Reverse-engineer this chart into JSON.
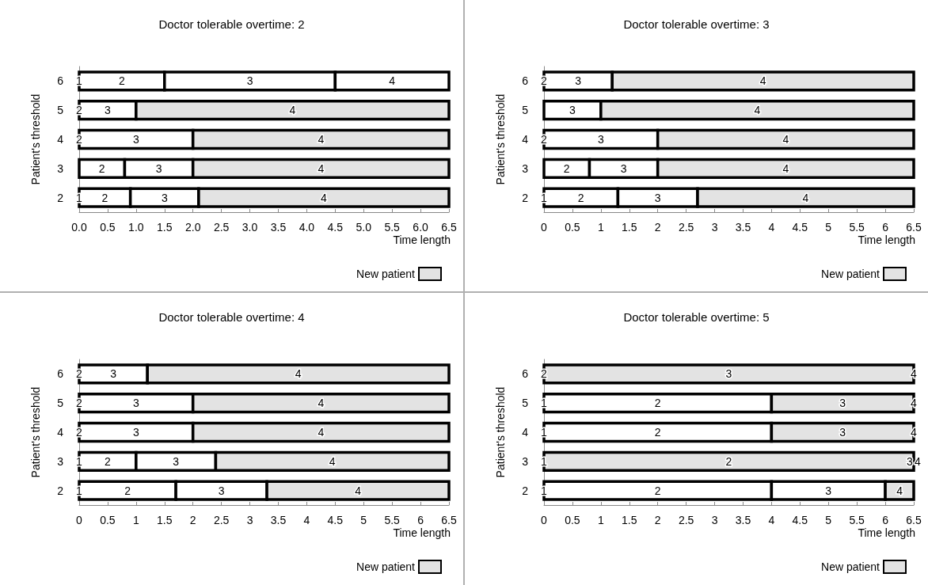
{
  "chart_data": [
    {
      "type": "bar",
      "orientation": "horizontal",
      "title": "Doctor tolerable overtime: 2",
      "xlabel": "Time length",
      "ylabel": "Patient's threshold",
      "categories": [
        "6",
        "5",
        "4",
        "3",
        "2"
      ],
      "xlim": [
        0,
        6.5
      ],
      "xticks": [
        {
          "value": 0,
          "label": "0.0"
        },
        {
          "value": 0.5,
          "label": "0.5"
        },
        {
          "value": 1,
          "label": "1.0"
        },
        {
          "value": 1.5,
          "label": "1.5"
        },
        {
          "value": 2,
          "label": "2.0"
        },
        {
          "value": 2.5,
          "label": "2.5"
        },
        {
          "value": 3,
          "label": "3.0"
        },
        {
          "value": 3.5,
          "label": "3.5"
        },
        {
          "value": 4,
          "label": "4.0"
        },
        {
          "value": 4.5,
          "label": "4.5"
        },
        {
          "value": 5,
          "label": "5.0"
        },
        {
          "value": 5.5,
          "label": "5.5"
        },
        {
          "value": 6,
          "label": "6.0"
        },
        {
          "value": 6.5,
          "label": "6.5"
        }
      ],
      "grid": false,
      "legend": "bottom right",
      "series": [
        {
          "color": "#ffffff",
          "values": [
            1.5,
            null,
            null,
            0.8,
            0.9
          ],
          "base": [
            0,
            null,
            null,
            0,
            0
          ]
        },
        {
          "color": "#ffffff",
          "values": [
            3,
            1,
            2,
            1.2,
            1.2
          ],
          "base": [
            1.5,
            0,
            0,
            0.8,
            0.9
          ]
        },
        {
          "color": "#ffffff",
          "values": [
            2,
            null,
            null,
            null,
            null
          ],
          "base": [
            4.5,
            null,
            null,
            null,
            null
          ]
        },
        {
          "name": "New patient",
          "color": "#e3e3e3",
          "values": [
            null,
            5.5,
            4.5,
            4.5,
            4.4
          ],
          "base": [
            null,
            1,
            2,
            2,
            2.1
          ]
        }
      ],
      "annotations": [
        {
          "text": "1",
          "x": 0,
          "y": "6"
        },
        {
          "text": "2",
          "x": 0.75,
          "y": "6"
        },
        {
          "text": "3",
          "x": 3,
          "y": "6"
        },
        {
          "text": "4",
          "x": 5.5,
          "y": "6"
        },
        {
          "text": "2",
          "x": 0,
          "y": "5"
        },
        {
          "text": "3",
          "x": 0.5,
          "y": "5"
        },
        {
          "text": "4",
          "x": 3.75,
          "y": "5"
        },
        {
          "text": "2",
          "x": 0,
          "y": "4"
        },
        {
          "text": "3",
          "x": 1,
          "y": "4"
        },
        {
          "text": "4",
          "x": 4.25,
          "y": "4"
        },
        {
          "text": "2",
          "x": 0.4,
          "y": "3"
        },
        {
          "text": "3",
          "x": 1.4,
          "y": "3"
        },
        {
          "text": "4",
          "x": 4.25,
          "y": "3"
        },
        {
          "text": "1",
          "x": 0,
          "y": "2"
        },
        {
          "text": "2",
          "x": 0.45,
          "y": "2"
        },
        {
          "text": "3",
          "x": 1.5,
          "y": "2"
        },
        {
          "text": "4",
          "x": 4.3,
          "y": "2"
        }
      ]
    },
    {
      "type": "bar",
      "orientation": "horizontal",
      "title": "Doctor tolerable overtime: 3",
      "xlabel": "Time length",
      "ylabel": "Patient's threshold",
      "categories": [
        "6",
        "5",
        "4",
        "3",
        "2"
      ],
      "xlim": [
        0,
        6.5
      ],
      "xticks": [
        0,
        0.5,
        1,
        1.5,
        2,
        2.5,
        3,
        3.5,
        4,
        4.5,
        5,
        5.5,
        6,
        6.5
      ],
      "grid": false,
      "legend": "bottom right",
      "series": [
        {
          "color": "#ffffff",
          "values": [
            null,
            null,
            null,
            0.8,
            1.3
          ],
          "base": [
            null,
            null,
            null,
            0,
            0
          ]
        },
        {
          "color": "#ffffff",
          "values": [
            1.2,
            1,
            2,
            1.2,
            1.4
          ],
          "base": [
            0,
            0,
            0,
            0.8,
            1.3
          ]
        },
        {
          "name": "New patient",
          "color": "#e3e3e3",
          "values": [
            5.3,
            5.5,
            4.5,
            4.5,
            3.8
          ],
          "base": [
            1.2,
            1,
            2,
            2,
            2.7
          ]
        }
      ],
      "annotations": [
        {
          "text": "2",
          "x": 0,
          "y": "6"
        },
        {
          "text": "3",
          "x": 0.6,
          "y": "6"
        },
        {
          "text": "4",
          "x": 3.85,
          "y": "6"
        },
        {
          "text": "3",
          "x": 0.5,
          "y": "5"
        },
        {
          "text": "4",
          "x": 3.75,
          "y": "5"
        },
        {
          "text": "2",
          "x": 0,
          "y": "4"
        },
        {
          "text": "3",
          "x": 1,
          "y": "4"
        },
        {
          "text": "4",
          "x": 4.25,
          "y": "4"
        },
        {
          "text": "2",
          "x": 0.4,
          "y": "3"
        },
        {
          "text": "3",
          "x": 1.4,
          "y": "3"
        },
        {
          "text": "4",
          "x": 4.25,
          "y": "3"
        },
        {
          "text": "1",
          "x": 0,
          "y": "2"
        },
        {
          "text": "2",
          "x": 0.65,
          "y": "2"
        },
        {
          "text": "3",
          "x": 2,
          "y": "2"
        },
        {
          "text": "4",
          "x": 4.6,
          "y": "2"
        }
      ]
    },
    {
      "type": "bar",
      "orientation": "horizontal",
      "title": "Doctor tolerable overtime: 4",
      "xlabel": "Time length",
      "ylabel": "Patient's threshold",
      "categories": [
        "6",
        "5",
        "4",
        "3",
        "2"
      ],
      "xlim": [
        0,
        6.5
      ],
      "xticks": [
        0,
        0.5,
        1,
        1.5,
        2,
        2.5,
        3,
        3.5,
        4,
        4.5,
        5,
        5.5,
        6,
        6.5
      ],
      "grid": false,
      "legend": "bottom right",
      "series": [
        {
          "color": "#ffffff",
          "values": [
            null,
            null,
            null,
            1,
            1.7
          ],
          "base": [
            null,
            null,
            null,
            0,
            0
          ]
        },
        {
          "color": "#ffffff",
          "values": [
            1.2,
            2,
            2,
            1.4,
            1.6
          ],
          "base": [
            0,
            0,
            0,
            1,
            1.7
          ]
        },
        {
          "name": "New patient",
          "color": "#e3e3e3",
          "values": [
            5.3,
            4.5,
            4.5,
            4.1,
            3.2
          ],
          "base": [
            1.2,
            2,
            2,
            2.4,
            3.3
          ]
        }
      ],
      "annotations": [
        {
          "text": "2",
          "x": 0,
          "y": "6"
        },
        {
          "text": "3",
          "x": 0.6,
          "y": "6"
        },
        {
          "text": "4",
          "x": 3.85,
          "y": "6"
        },
        {
          "text": "2",
          "x": 0,
          "y": "5"
        },
        {
          "text": "3",
          "x": 1,
          "y": "5"
        },
        {
          "text": "4",
          "x": 4.25,
          "y": "5"
        },
        {
          "text": "2",
          "x": 0,
          "y": "4"
        },
        {
          "text": "3",
          "x": 1,
          "y": "4"
        },
        {
          "text": "4",
          "x": 4.25,
          "y": "4"
        },
        {
          "text": "1",
          "x": 0,
          "y": "3"
        },
        {
          "text": "2",
          "x": 0.5,
          "y": "3"
        },
        {
          "text": "3",
          "x": 1.7,
          "y": "3"
        },
        {
          "text": "4",
          "x": 4.45,
          "y": "3"
        },
        {
          "text": "1",
          "x": 0,
          "y": "2"
        },
        {
          "text": "2",
          "x": 0.85,
          "y": "2"
        },
        {
          "text": "3",
          "x": 2.5,
          "y": "2"
        },
        {
          "text": "4",
          "x": 4.9,
          "y": "2"
        }
      ]
    },
    {
      "type": "bar",
      "orientation": "horizontal",
      "title": "Doctor tolerable overtime: 5",
      "xlabel": "Time length",
      "ylabel": "Patient's threshold",
      "categories": [
        "6",
        "5",
        "4",
        "3",
        "2"
      ],
      "xlim": [
        0,
        6.5
      ],
      "xticks": [
        0,
        0.5,
        1,
        1.5,
        2,
        2.5,
        3,
        3.5,
        4,
        4.5,
        5,
        5.5,
        6,
        6.5
      ],
      "grid": false,
      "legend": "bottom right",
      "series": [
        {
          "color": "#ffffff",
          "values": [
            null,
            4,
            4,
            null,
            4
          ],
          "base": [
            null,
            0,
            0,
            null,
            0
          ]
        },
        {
          "color": "#ffffff",
          "values": [
            null,
            null,
            null,
            null,
            2
          ],
          "base": [
            null,
            null,
            null,
            null,
            4
          ]
        },
        {
          "name": "New patient",
          "color": "#e3e3e3",
          "values": [
            6.5,
            2.5,
            2.5,
            6.5,
            0.5
          ],
          "base": [
            0,
            4,
            4,
            0,
            6
          ]
        }
      ],
      "annotations": [
        {
          "text": "2",
          "x": 0,
          "y": "6"
        },
        {
          "text": "3",
          "x": 3.25,
          "y": "6"
        },
        {
          "text": "4",
          "x": 6.5,
          "y": "6"
        },
        {
          "text": "1",
          "x": 0,
          "y": "5"
        },
        {
          "text": "2",
          "x": 2,
          "y": "5"
        },
        {
          "text": "3",
          "x": 5.25,
          "y": "5"
        },
        {
          "text": "4",
          "x": 6.5,
          "y": "5"
        },
        {
          "text": "1",
          "x": 0,
          "y": "4"
        },
        {
          "text": "2",
          "x": 2,
          "y": "4"
        },
        {
          "text": "3",
          "x": 5.25,
          "y": "4"
        },
        {
          "text": "4",
          "x": 6.5,
          "y": "4"
        },
        {
          "text": "1",
          "x": 0,
          "y": "3"
        },
        {
          "text": "2",
          "x": 3.25,
          "y": "3"
        },
        {
          "text": "3",
          "x": 6.5,
          "y": "3"
        },
        {
          "text": "4",
          "x": 6.5,
          "y": "3"
        },
        {
          "text": "1",
          "x": 0,
          "y": "2"
        },
        {
          "text": "2",
          "x": 2,
          "y": "2"
        },
        {
          "text": "3",
          "x": 5,
          "y": "2"
        },
        {
          "text": "4",
          "x": 6.25,
          "y": "2"
        }
      ]
    }
  ]
}
